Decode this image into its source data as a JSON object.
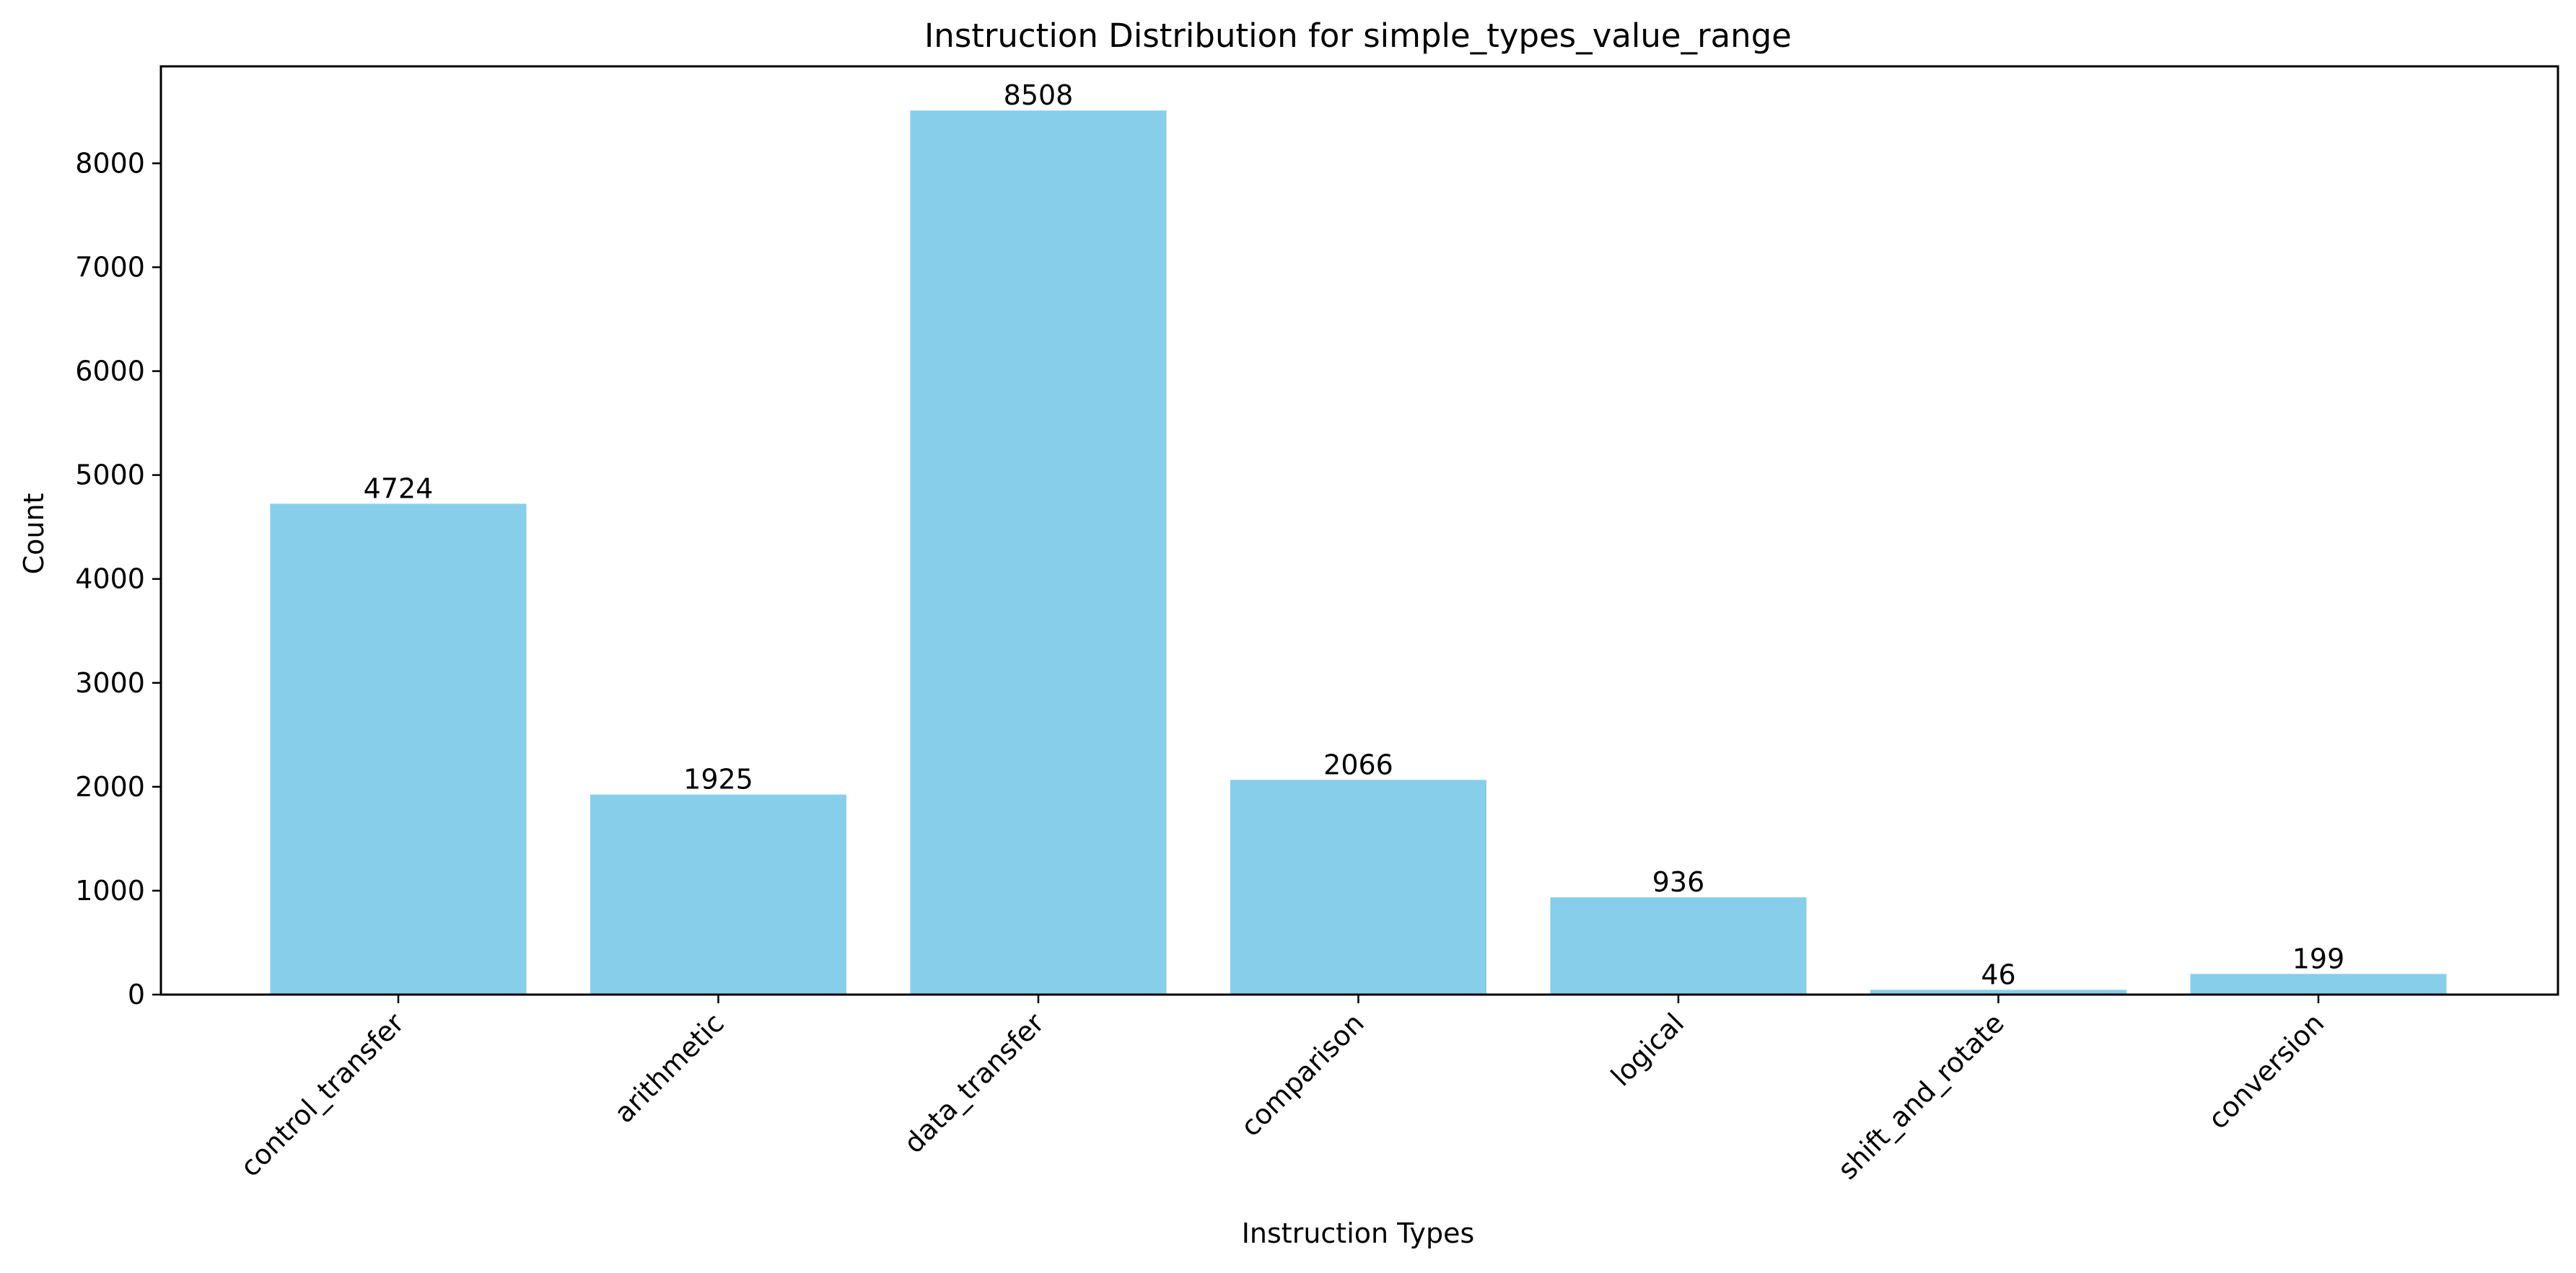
{
  "chart_data": {
    "type": "bar",
    "title": "Instruction Distribution for simple_types_value_range",
    "xlabel": "Instruction Types",
    "ylabel": "Count",
    "categories": [
      "control_transfer",
      "arithmetic",
      "data_transfer",
      "comparison",
      "logical",
      "shift_and_rotate",
      "conversion"
    ],
    "values": [
      4724,
      1925,
      8508,
      2066,
      936,
      46,
      199
    ],
    "data_labels": [
      "4724",
      "1925",
      "8508",
      "2066",
      "936",
      "46",
      "199"
    ],
    "yticks": [
      0,
      1000,
      2000,
      3000,
      4000,
      5000,
      6000,
      7000,
      8000
    ],
    "ytick_labels": [
      "0",
      "1000",
      "2000",
      "3000",
      "4000",
      "5000",
      "6000",
      "7000",
      "8000"
    ],
    "ylim": [
      0,
      8933
    ],
    "bar_color": "#87ceeb",
    "grid": false,
    "legend": "none"
  }
}
